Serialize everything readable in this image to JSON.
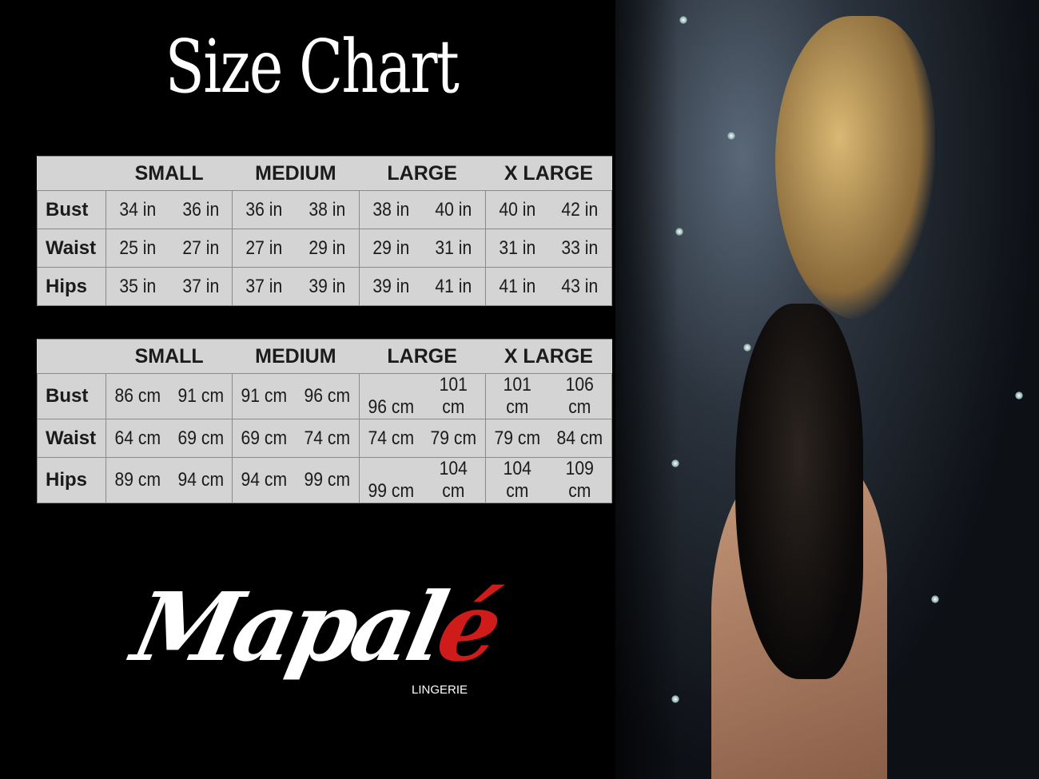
{
  "title": "Size Chart",
  "tables": [
    {
      "headers": [
        "",
        "SMALL",
        "MEDIUM",
        "LARGE",
        "X LARGE"
      ],
      "rows": [
        {
          "label": "Bust",
          "values": [
            [
              "34 in",
              "36 in"
            ],
            [
              "36 in",
              "38 in"
            ],
            [
              "38 in",
              "40 in"
            ],
            [
              "40 in",
              "42 in"
            ]
          ]
        },
        {
          "label": "Waist",
          "values": [
            [
              "25 in",
              "27 in"
            ],
            [
              "27 in",
              "29 in"
            ],
            [
              "29 in",
              "31 in"
            ],
            [
              "31 in",
              "33 in"
            ]
          ]
        },
        {
          "label": "Hips",
          "values": [
            [
              "35 in",
              "37 in"
            ],
            [
              "37 in",
              "39 in"
            ],
            [
              "39 in",
              "41 in"
            ],
            [
              "41 in",
              "43 in"
            ]
          ]
        }
      ]
    },
    {
      "headers": [
        "",
        "SMALL",
        "MEDIUM",
        "LARGE",
        "X LARGE"
      ],
      "rows": [
        {
          "label": "Bust",
          "values": [
            [
              "86 cm",
              "91 cm"
            ],
            [
              "91 cm",
              "96 cm"
            ],
            [
              "96 cm",
              "101 cm"
            ],
            [
              "101 cm",
              "106 cm"
            ]
          ]
        },
        {
          "label": "Waist",
          "values": [
            [
              "64 cm",
              "69 cm"
            ],
            [
              "69 cm",
              "74 cm"
            ],
            [
              "74 cm",
              "79 cm"
            ],
            [
              "79 cm",
              "84 cm"
            ]
          ]
        },
        {
          "label": "Hips",
          "values": [
            [
              "89 cm",
              "94 cm"
            ],
            [
              "94 cm",
              "99 cm"
            ],
            [
              "99 cm",
              "104 cm"
            ],
            [
              "104 cm",
              "109 cm"
            ]
          ]
        }
      ]
    }
  ],
  "logo": {
    "text_main": "Mapal",
    "text_accent": "é",
    "subtitle": "LINGERIE",
    "accent_color": "#d01b1b"
  },
  "colors": {
    "background": "#000000",
    "table_bg": "#d4d4d4",
    "table_border": "#8a8a8a"
  }
}
